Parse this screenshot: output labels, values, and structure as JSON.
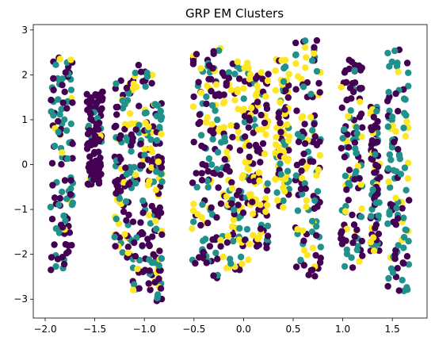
{
  "chart_data": {
    "type": "scatter",
    "title": "GRP EM Clusters",
    "xlabel": "",
    "ylabel": "",
    "xlim": [
      -2.12,
      1.85
    ],
    "ylim": [
      -3.42,
      3.12
    ],
    "x_ticks": [
      -2.0,
      -1.5,
      -1.0,
      -0.5,
      0.0,
      0.5,
      1.0,
      1.5
    ],
    "x_tick_labels": [
      "−2.0",
      "−1.5",
      "−1.0",
      "−0.5",
      "0.0",
      "0.5",
      "1.0",
      "1.5"
    ],
    "y_ticks": [
      -3,
      -2,
      -1,
      0,
      1,
      2,
      3
    ],
    "y_tick_labels": [
      "−3",
      "−2",
      "−1",
      "0",
      "1",
      "2",
      "3"
    ],
    "grid": false,
    "legend": "none",
    "series": [
      {
        "color": "#440154",
        "cluster": 0
      },
      {
        "color": "#21918c",
        "cluster": 1
      },
      {
        "color": "#fde725",
        "cluster": 2
      }
    ],
    "column_groups": [
      {
        "x": [
          -1.95,
          -1.72
        ],
        "y": [
          -2.55,
          2.45
        ],
        "mix": [
          0.55,
          0.35,
          0.1
        ]
      },
      {
        "x": [
          -1.58,
          -1.42
        ],
        "y": [
          -0.45,
          1.7
        ],
        "mix": [
          0.9,
          0.08,
          0.02
        ]
      },
      {
        "x": [
          -1.3,
          -1.12
        ],
        "y": [
          -2.1,
          1.9
        ],
        "mix": [
          0.45,
          0.3,
          0.25
        ]
      },
      {
        "x": [
          -1.12,
          -0.9
        ],
        "y": [
          -2.8,
          2.3
        ],
        "mix": [
          0.4,
          0.35,
          0.25
        ]
      },
      {
        "x": [
          -0.9,
          -0.82
        ],
        "y": [
          -3.1,
          1.4
        ],
        "mix": [
          0.45,
          0.4,
          0.15
        ]
      },
      {
        "x": [
          -0.52,
          -0.2
        ],
        "y": [
          -2.6,
          2.65
        ],
        "mix": [
          0.4,
          0.35,
          0.25
        ]
      },
      {
        "x": [
          -0.2,
          0.05
        ],
        "y": [
          -2.5,
          2.3
        ],
        "mix": [
          0.35,
          0.25,
          0.4
        ]
      },
      {
        "x": [
          0.05,
          0.25
        ],
        "y": [
          -1.9,
          2.15
        ],
        "mix": [
          0.5,
          0.15,
          0.35
        ]
      },
      {
        "x": [
          0.32,
          0.46
        ],
        "y": [
          -1.05,
          2.35
        ],
        "mix": [
          0.15,
          0.2,
          0.65
        ]
      },
      {
        "x": [
          0.52,
          0.78
        ],
        "y": [
          -2.55,
          2.8
        ],
        "mix": [
          0.4,
          0.35,
          0.25
        ]
      },
      {
        "x": [
          0.98,
          1.2
        ],
        "y": [
          -2.3,
          2.35
        ],
        "mix": [
          0.45,
          0.35,
          0.2
        ]
      },
      {
        "x": [
          1.28,
          1.38
        ],
        "y": [
          -2.0,
          1.3
        ],
        "mix": [
          0.6,
          0.3,
          0.1
        ]
      },
      {
        "x": [
          1.45,
          1.67
        ],
        "y": [
          -2.85,
          2.6
        ],
        "mix": [
          0.4,
          0.45,
          0.15
        ]
      }
    ]
  }
}
